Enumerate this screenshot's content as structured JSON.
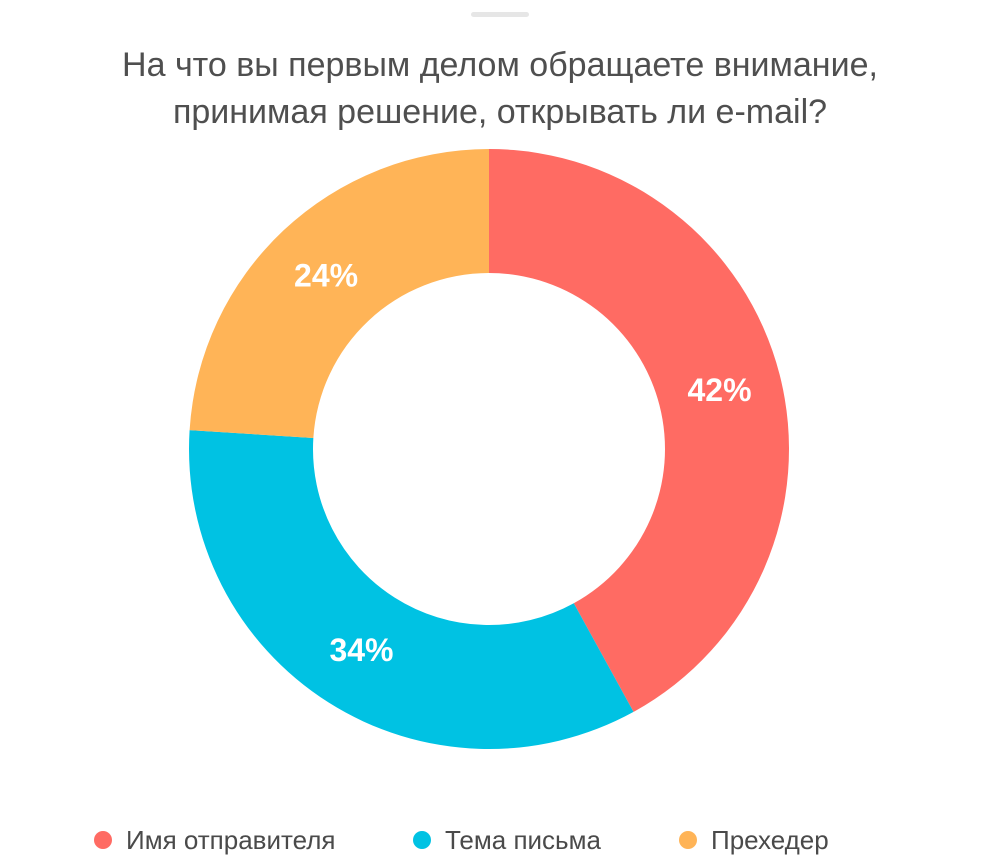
{
  "chart_data": {
    "type": "pie",
    "variant": "donut",
    "title_lines": [
      "На что вы первым делом обращаете внимание,",
      "принимая решение, открывать ли e-mail?"
    ],
    "categories": [
      "Имя отправителя",
      "Тема письма",
      "Прехедер"
    ],
    "values": [
      42,
      34,
      24
    ],
    "value_labels": [
      "42%",
      "34%",
      "24%"
    ],
    "colors": [
      "#ff6b63",
      "#00c2e3",
      "#ffb457"
    ],
    "legend_position": "bottom",
    "start_angle": "top, clockwise"
  }
}
